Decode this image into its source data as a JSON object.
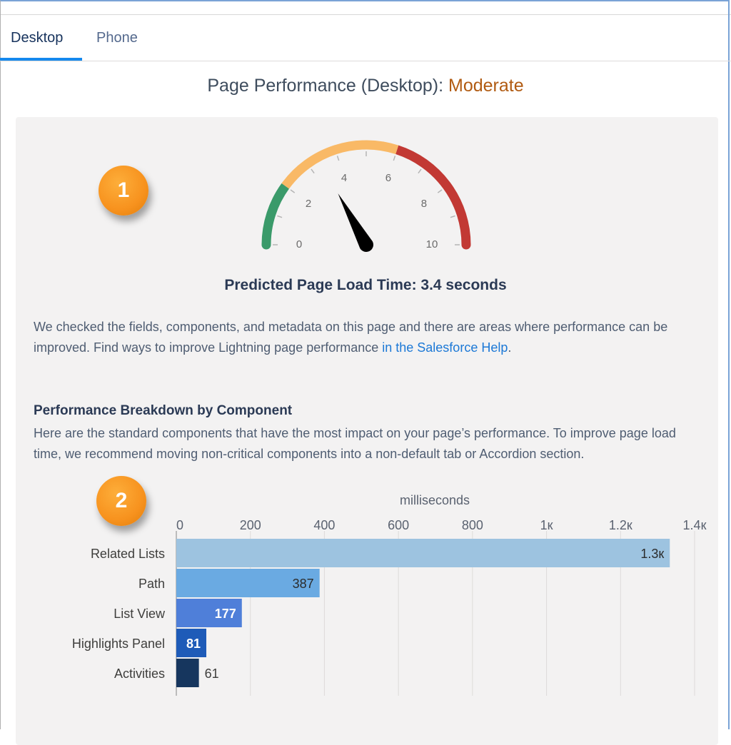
{
  "tabs": [
    {
      "label": "Desktop",
      "active": true
    },
    {
      "label": "Phone",
      "active": false
    }
  ],
  "header": {
    "title_prefix": "Page Performance (Desktop):",
    "rating": "Moderate",
    "rating_color": "#b15b12"
  },
  "callouts": [
    "1",
    "2"
  ],
  "gauge": {
    "min": 0,
    "max": 10,
    "value": 3.4,
    "ticks": [
      "0",
      "2",
      "4",
      "6",
      "8",
      "10"
    ],
    "bands": [
      {
        "from": 0,
        "to": 2,
        "color": "#3a9a6a"
      },
      {
        "from": 2,
        "to": 6,
        "color": "#f9b966"
      },
      {
        "from": 6,
        "to": 10,
        "color": "#c23934"
      }
    ]
  },
  "prediction": "Predicted Page Load Time: 3.4 seconds",
  "intro": {
    "text": "We checked the fields, components, and metadata on this page and there are areas where performance can be improved. Find ways to improve Lightning page performance ",
    "link": "in the Salesforce Help",
    "end": "."
  },
  "breakdown": {
    "heading": "Performance Breakdown by Component",
    "text": "Here are the standard components that have the most impact on your page’s performance. To improve page load time, we recommend moving non-critical components into a non-default tab or Accordion section."
  },
  "chart_data": {
    "type": "bar",
    "orientation": "horizontal",
    "xlabel": "milliseconds",
    "xlim": [
      0,
      1400
    ],
    "xticks": [
      0,
      200,
      400,
      600,
      800,
      1000,
      1200,
      1400
    ],
    "xtick_labels": [
      "0",
      "200",
      "400",
      "600",
      "800",
      "1к",
      "1.2к",
      "1.4к"
    ],
    "grid": true,
    "categories": [
      "Related Lists",
      "Path",
      "List View",
      "Highlights Panel",
      "Activities"
    ],
    "values": [
      1333,
      387,
      177,
      81,
      61
    ],
    "data_labels": [
      "1.3к",
      "387",
      "177",
      "81",
      "61"
    ],
    "colors": [
      "#9dc3e0",
      "#6aaae2",
      "#4f7fd9",
      "#1e5bb8",
      "#16365e"
    ]
  }
}
